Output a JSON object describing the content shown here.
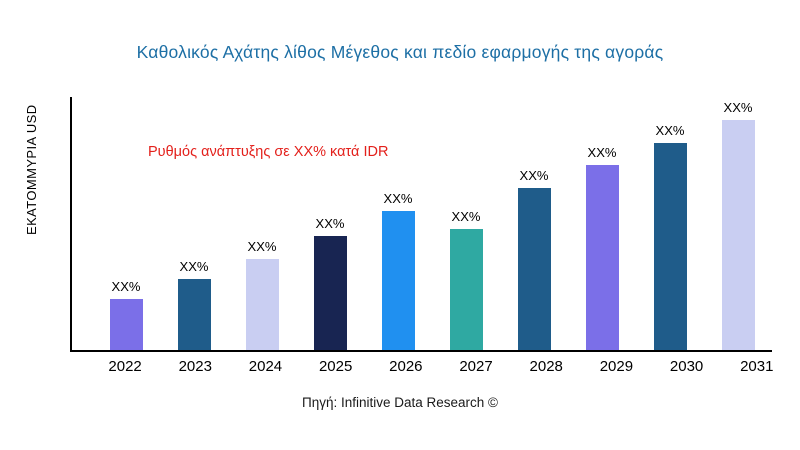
{
  "chart_data": {
    "type": "bar",
    "title": "Καθολικός Αχάτης λίθος Μέγεθος και πεδίο εφαρμογής της αγοράς",
    "ylabel": "ΕΚΑΤΟΜΜΥΡΙΑ USD",
    "annotation": "Ρυθμός ανάπτυξης σε XX% κατά IDR",
    "source": "Πηγή: Infinitive Data Research ©",
    "categories": [
      "2022",
      "2023",
      "2024",
      "2025",
      "2026",
      "2027",
      "2028",
      "2029",
      "2030",
      "2031"
    ],
    "values": [
      20,
      28,
      36,
      45,
      55,
      48,
      64,
      73,
      82,
      91
    ],
    "values_note": "relative bar heights in % of plot height; true values not shown in chart",
    "bar_labels": [
      "XX%",
      "XX%",
      "XX%",
      "XX%",
      "XX%",
      "XX%",
      "XX%",
      "XX%",
      "XX%",
      "XX%"
    ],
    "bar_colors": [
      "#7b6fe8",
      "#1f5c8a",
      "#c9cef2",
      "#182552",
      "#2090f0",
      "#2fa9a2",
      "#1f5c8a",
      "#7b6fe8",
      "#1f5c8a",
      "#c9cef2"
    ],
    "colors": {
      "title": "#1d6fa5",
      "annotation": "#e3201b",
      "axis": "#000000",
      "bar_label": "#000000"
    },
    "grid": "off",
    "legend": "none",
    "xlabel": ""
  }
}
